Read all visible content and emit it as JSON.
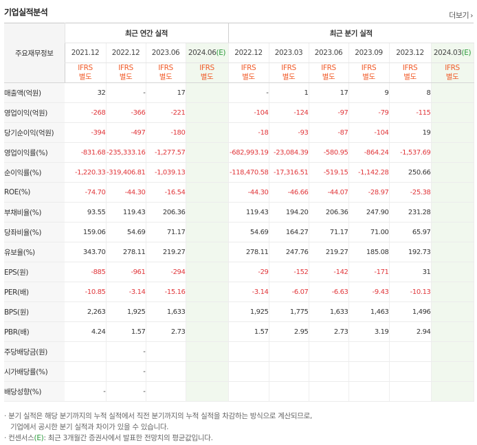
{
  "title": "기업실적분석",
  "more_label": "더보기",
  "more_icon": "chevron-right-icon",
  "label_header": "주요재무정보",
  "groups": {
    "annual": "최근 연간 실적",
    "quarterly": "최근 분기 실적"
  },
  "annual_periods": [
    "2021.12",
    "2022.12",
    "2023.06",
    "2024.06"
  ],
  "quarter_periods": [
    "2022.12",
    "2023.03",
    "2023.06",
    "2023.09",
    "2023.12",
    "2024.03"
  ],
  "estimate_mark": "(E)",
  "ifrs_line1": "IFRS",
  "ifrs_line2": "별도",
  "rows": [
    {
      "label": "매출액(억원)",
      "annual": [
        "32",
        "-",
        "17",
        ""
      ],
      "quarterly": [
        "-",
        "1",
        "17",
        "9",
        "8",
        ""
      ]
    },
    {
      "label": "영업이익(억원)",
      "annual": [
        "-268",
        "-366",
        "-221",
        ""
      ],
      "quarterly": [
        "-104",
        "-124",
        "-97",
        "-79",
        "-115",
        ""
      ]
    },
    {
      "label": "당기순이익(억원)",
      "annual": [
        "-394",
        "-497",
        "-180",
        ""
      ],
      "quarterly": [
        "-18",
        "-93",
        "-87",
        "-104",
        "19",
        ""
      ]
    },
    {
      "label": "영업이익률(%)",
      "annual": [
        "-831.68",
        "-235,333.16",
        "-1,277.57",
        ""
      ],
      "quarterly": [
        "-682,993.19",
        "-23,084.39",
        "-580.95",
        "-864.24",
        "-1,537.69",
        ""
      ]
    },
    {
      "label": "순이익률(%)",
      "annual": [
        "-1,220.33",
        "-319,406.81",
        "-1,039.13",
        ""
      ],
      "quarterly": [
        "-118,470.58",
        "-17,316.51",
        "-519.15",
        "-1,142.28",
        "250.66",
        ""
      ]
    },
    {
      "label": "ROE(%)",
      "annual": [
        "-74.70",
        "-44.30",
        "-16.54",
        ""
      ],
      "quarterly": [
        "-44.30",
        "-46.66",
        "-44.07",
        "-28.97",
        "-25.38",
        ""
      ]
    },
    {
      "label": "부채비율(%)",
      "annual": [
        "93.55",
        "119.43",
        "206.36",
        ""
      ],
      "quarterly": [
        "119.43",
        "194.20",
        "206.36",
        "247.90",
        "231.28",
        ""
      ]
    },
    {
      "label": "당좌비율(%)",
      "annual": [
        "159.06",
        "54.69",
        "71.17",
        ""
      ],
      "quarterly": [
        "54.69",
        "164.27",
        "71.17",
        "71.00",
        "65.97",
        ""
      ]
    },
    {
      "label": "유보율(%)",
      "annual": [
        "343.70",
        "278.11",
        "219.27",
        ""
      ],
      "quarterly": [
        "278.11",
        "247.76",
        "219.27",
        "185.08",
        "192.73",
        ""
      ]
    },
    {
      "label": "EPS(원)",
      "annual": [
        "-885",
        "-961",
        "-294",
        ""
      ],
      "quarterly": [
        "-29",
        "-152",
        "-142",
        "-171",
        "31",
        ""
      ]
    },
    {
      "label": "PER(배)",
      "annual": [
        "-10.85",
        "-3.14",
        "-15.16",
        ""
      ],
      "quarterly": [
        "-3.14",
        "-6.07",
        "-6.63",
        "-9.43",
        "-10.13",
        ""
      ]
    },
    {
      "label": "BPS(원)",
      "annual": [
        "2,263",
        "1,925",
        "1,633",
        ""
      ],
      "quarterly": [
        "1,925",
        "1,775",
        "1,633",
        "1,463",
        "1,496",
        ""
      ]
    },
    {
      "label": "PBR(배)",
      "annual": [
        "4.24",
        "1.57",
        "2.73",
        ""
      ],
      "quarterly": [
        "1.57",
        "2.95",
        "2.73",
        "3.19",
        "2.94",
        ""
      ]
    },
    {
      "label": "주당배당금(원)",
      "annual": [
        "",
        "-",
        "",
        ""
      ],
      "quarterly": [
        "",
        "",
        "",
        "",
        "",
        ""
      ]
    },
    {
      "label": "시가배당률(%)",
      "annual": [
        "",
        "-",
        "",
        ""
      ],
      "quarterly": [
        "",
        "",
        "",
        "",
        "",
        ""
      ]
    },
    {
      "label": "배당성향(%)",
      "annual": [
        "-",
        "-",
        "",
        ""
      ],
      "quarterly": [
        "",
        "",
        "",
        "",
        "",
        ""
      ]
    }
  ],
  "notes": [
    "분기 실적은 해당 분기까지의 누적 실적에서 직전 분기까지의 누적 실적을 차감하는 방식으로 계산되므로,",
    "기업에서 공시한 분기 실적과 차이가 있을 수 있습니다."
  ],
  "note2_prefix": "컨센서스",
  "note2_suffix": ": 최근 3개월간 증권사에서 발표한 전망치의 평균값입니다.",
  "colors": {
    "negative": "#e0363a",
    "ifrs": "#f05a28",
    "estimate_bg": "#f1f8ee",
    "estimate_text": "#2a9a3a"
  }
}
